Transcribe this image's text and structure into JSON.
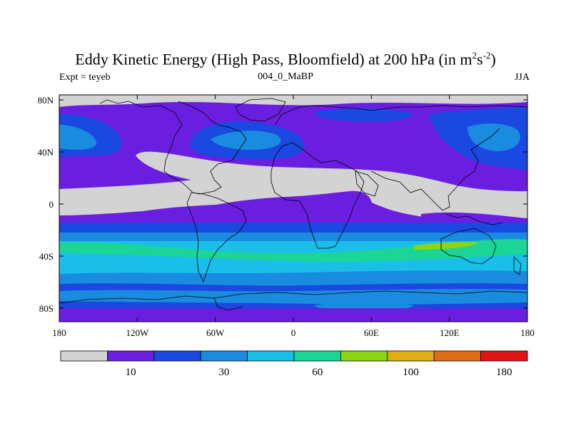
{
  "title": {
    "main": "Eddy Kinetic Energy (High Pass, Bloomfield) at 200 hPa (in m",
    "sup1": "2",
    "mid": "s",
    "sup2": "-2",
    "close": ")"
  },
  "subtitle": "004_0_MaBP",
  "left_label": "Expt = teyeb",
  "right_label": "JJA",
  "axes": {
    "x_ticks": [
      "180",
      "120W",
      "60W",
      "0",
      "60E",
      "120E",
      "180"
    ],
    "y_ticks": [
      "80N",
      "40N",
      "0",
      "40S",
      "80S"
    ]
  },
  "colorbar": {
    "colors": [
      "#d3d3d3",
      "#6a1fe0",
      "#1a48e0",
      "#1a8ce0",
      "#19bfe8",
      "#1ad595",
      "#8ad514",
      "#e0b012",
      "#e06a12",
      "#e01414"
    ],
    "labels": [
      {
        "text": "10",
        "boundary": 2
      },
      {
        "text": "30",
        "boundary": 4
      },
      {
        "text": "60",
        "boundary": 6
      },
      {
        "text": "100",
        "boundary": 8
      },
      {
        "text": "180",
        "boundary": 10
      }
    ]
  }
}
